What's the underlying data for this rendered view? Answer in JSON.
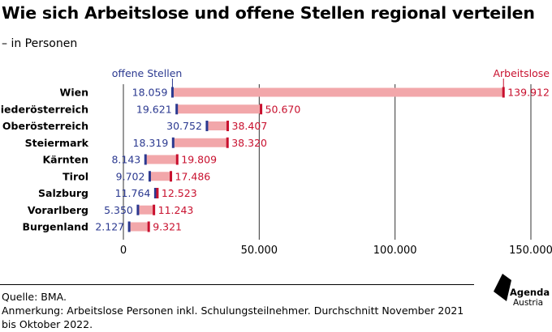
{
  "header": {
    "title": "Wie sich Arbeitslose und offene Stellen regional verteilen",
    "subtitle": "– in Personen"
  },
  "chart_data": {
    "type": "bar",
    "title": "Wie sich Arbeitslose und offene Stellen regional verteilen",
    "subtitle": "– in Personen",
    "categories": [
      "Wien",
      "Niederösterreich",
      "Oberösterreich",
      "Steiermark",
      "Kärnten",
      "Tirol",
      "Salzburg",
      "Vorarlberg",
      "Burgenland"
    ],
    "series": [
      {
        "name": "offene Stellen",
        "values": [
          18059,
          19621,
          30752,
          18319,
          8143,
          9702,
          11764,
          5350,
          2127
        ],
        "labels": [
          "18.059",
          "19.621",
          "30.752",
          "18.319",
          "8.143",
          "9.702",
          "11.764",
          "5.350",
          "2.127"
        ]
      },
      {
        "name": "Arbeitslose",
        "values": [
          139912,
          50670,
          38407,
          38320,
          19809,
          17486,
          12523,
          11243,
          9321
        ],
        "labels": [
          "139.912",
          "50.670",
          "38.407",
          "38.320",
          "19.809",
          "17.486",
          "12.523",
          "11.243",
          "9.321"
        ]
      }
    ],
    "xlim": [
      0,
      150000
    ],
    "xticks": [
      0,
      50000,
      100000,
      150000
    ],
    "xtick_labels": [
      "0",
      "50.000",
      "100.000",
      "150.000"
    ],
    "grid": true,
    "colors": {
      "offene_stellen": "#2b3990",
      "arbeitslose": "#c8102e",
      "range": "#f2a7aa",
      "grid": "#333333"
    }
  },
  "footer": {
    "source": "Quelle: BMA.",
    "note": "Anmerkung: Arbeitslose Personen inkl. Schulungsteilnehmer. Durchschnitt November 2021 bis Oktober 2022."
  },
  "logo": {
    "line1": "Agenda",
    "line2": "Austria",
    "icon": "agenda-austria-logo-icon"
  }
}
